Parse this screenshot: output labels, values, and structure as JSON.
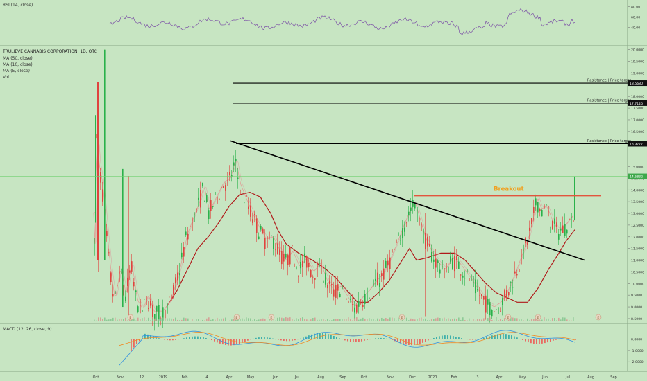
{
  "rsi": {
    "label": "RSI (14, close)",
    "ticks": [
      "80.00",
      "60.00",
      "40.00"
    ],
    "tick_values": [
      80,
      60,
      40
    ],
    "range": [
      10,
      90
    ],
    "color": "#7b4fa6"
  },
  "main": {
    "symbol_label": "TRULIEVE CANNABIS CORPORATION, 1D, OTC",
    "indicators": [
      "MA (50, close)",
      "MA (10, close)",
      "MA (5, close)",
      "Vol"
    ],
    "price_ticks": [
      "20.0000",
      "19.5000",
      "19.0000",
      "18.0000",
      "17.5000",
      "17.0000",
      "16.5000",
      "16.0000",
      "15.0000",
      "14.5000",
      "14.0000",
      "13.5000",
      "13.0000",
      "12.5000",
      "12.0000",
      "11.5000",
      "11.0000",
      "10.5000",
      "10.0000",
      "9.5000",
      "9.0000",
      "8.5000"
    ],
    "price_tick_values": [
      20,
      19.5,
      19,
      18,
      17.5,
      17,
      16.5,
      16,
      15,
      14.5,
      14,
      13.5,
      13,
      12.5,
      12,
      11.5,
      11,
      10.5,
      10,
      9.5,
      9,
      8.5
    ],
    "price_range": [
      8.35,
      20.05
    ],
    "resistance_label": "Resistance | Price target",
    "resistance_levels": [
      {
        "value": 18.568,
        "badge": "18.5680"
      },
      {
        "value": 17.7125,
        "badge": "17.7125"
      },
      {
        "value": 15.9777,
        "badge": "15.9777"
      }
    ],
    "current_price_badge": "14.5832",
    "current_price": 14.5832,
    "breakout_label": "Breakout",
    "breakout_level": 13.75,
    "event_marker": "E",
    "colors": {
      "up": "#2ab14a",
      "down": "#e0433e",
      "ma50": "#b01919",
      "ma_short": "#e88888",
      "trendline": "#000000",
      "breakout": "#e2553d",
      "breakout_text": "#f0a020",
      "current": "#6fd06f"
    }
  },
  "macd": {
    "label": "MACD (12, 26, close, 9)",
    "ticks": [
      "0.0000",
      "-1.0000",
      "-2.0000"
    ],
    "tick_values": [
      0,
      -1,
      -2
    ],
    "range": [
      -2.6,
      1.2
    ],
    "colors": {
      "macd": "#2f8fe0",
      "signal": "#f08a24",
      "hist": "#26a6a6",
      "hist_neg": "#ef5350"
    }
  },
  "x_axis": {
    "labels": [
      "Oct",
      "Nov",
      "12",
      "2019",
      "Feb",
      "4",
      "Apr",
      "May",
      "Jun",
      "Jul",
      "Aug",
      "Sep",
      "Oct",
      "Nov",
      "Dec",
      "2020",
      "Feb",
      "3",
      "Apr",
      "May",
      "Jun",
      "Jul",
      "Aug",
      "Sep"
    ]
  },
  "chart_data": {
    "type": "candlestick",
    "title": "TRULIEVE CANNABIS CORPORATION, 1D, OTC",
    "ylim": [
      8.35,
      20.05
    ],
    "key_points": [
      {
        "date": "2018-10",
        "value": 12.5
      },
      {
        "date": "2018-10",
        "value": 17.0
      },
      {
        "date": "2018-12",
        "value": 8.5
      },
      {
        "date": "2019-02",
        "value": 14.5
      },
      {
        "date": "2019-04",
        "value": 15.9777
      },
      {
        "date": "2019-08",
        "value": 10.2
      },
      {
        "date": "2019-10",
        "value": 8.5
      },
      {
        "date": "2019-12",
        "value": 13.6
      },
      {
        "date": "2020-04",
        "value": 8.8
      },
      {
        "date": "2020-05",
        "value": 13.9
      },
      {
        "date": "2020-07",
        "value": 14.5832
      }
    ],
    "resistance_levels": [
      18.568,
      17.7125,
      15.9777
    ],
    "breakout_level": 13.75,
    "trendline": [
      {
        "date": "2019-04",
        "value": 16.1
      },
      {
        "date": "2020-07",
        "value": 11.0
      }
    ]
  }
}
